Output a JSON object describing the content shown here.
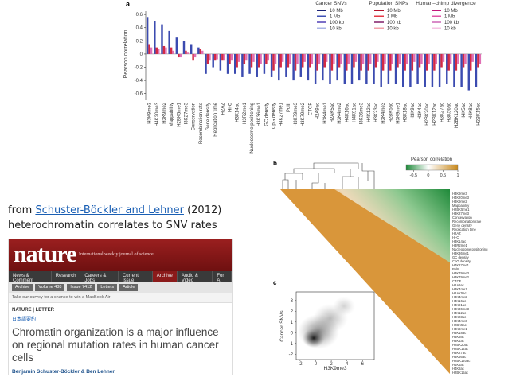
{
  "figure": {
    "panel_a": {
      "type": "bar",
      "letter": "a",
      "ylabel": "Pearson correlation",
      "categories": [
        "H3K9me3",
        "H4K20me3",
        "H3K9me2",
        "Mappability",
        "H2BK5me1",
        "H3K27me3",
        "Conservation",
        "Recombination rate",
        "Gene density",
        "Replication time",
        "H2AZ",
        "Hi-C",
        "H3K14ac",
        "H3R2me1",
        "Nucleosome positioning",
        "H3K36me1",
        "GC density",
        "CpG density",
        "H4K27me1",
        "PolII",
        "H3K79me3",
        "H3K79me2",
        "CTCF",
        "H2A9ac",
        "H3K4me1",
        "H2AK5ac",
        "H3K4me2",
        "H4K16ac",
        "H4K91ac",
        "H3K36me3",
        "H4K12ac",
        "H3K23ac",
        "H3K4me3",
        "H2BK5ac",
        "H3K9me1",
        "H3K18ac",
        "H3K9ac",
        "H3K4ac",
        "H2BK20ac",
        "H2BK12ac",
        "H3K27ac",
        "H3K56ac",
        "H2BK120ac",
        "H4K5ac",
        "H4K8ac",
        "H2BK15ac"
      ],
      "resolutions": [
        "10 Mb",
        "1 Mb",
        "100 kb",
        "10 kb"
      ],
      "series": [
        {
          "name": "Cancer SNVs",
          "color": "#3b4bb0",
          "legend_colors": [
            "#1c2478",
            "#3f51b5",
            "#7c6fc8",
            "#aab4e6"
          ],
          "values": [
            0.55,
            0.5,
            0.45,
            0.35,
            0.25,
            0.2,
            0.15,
            0.1,
            -0.3,
            -0.2,
            -0.25,
            -0.3,
            -0.3,
            -0.35,
            -0.3,
            -0.35,
            -0.3,
            -0.35,
            -0.4,
            -0.35,
            -0.4,
            -0.35,
            -0.4,
            -0.45,
            -0.4,
            -0.45,
            -0.4,
            -0.45,
            -0.45,
            -0.4,
            -0.45,
            -0.45,
            -0.5,
            -0.45,
            -0.45,
            -0.5,
            -0.5,
            -0.45,
            -0.5,
            -0.5,
            -0.5,
            -0.45,
            -0.5,
            -0.5,
            -0.55,
            -0.5
          ]
        },
        {
          "name": "Population SNPs",
          "color": "#d42a44",
          "legend_colors": [
            "#b3122b",
            "#e53945",
            "#a0568e",
            "#f2a0a8"
          ],
          "values": [
            0.15,
            0.1,
            0.12,
            0.1,
            -0.05,
            0.05,
            -0.1,
            0.08,
            -0.15,
            -0.1,
            -0.1,
            -0.15,
            -0.2,
            -0.15,
            -0.2,
            -0.2,
            -0.15,
            -0.25,
            -0.2,
            -0.2,
            -0.25,
            -0.2,
            -0.2,
            -0.25,
            -0.2,
            -0.25,
            -0.2,
            -0.25,
            -0.2,
            -0.25,
            -0.25,
            -0.2,
            -0.25,
            -0.25,
            -0.2,
            -0.25,
            -0.25,
            -0.2,
            -0.25,
            -0.25,
            -0.2,
            -0.25,
            -0.25,
            -0.2,
            -0.25,
            -0.2
          ]
        },
        {
          "name": "Human–chimp divergence",
          "color": "#e070b4",
          "legend_colors": [
            "#c2187a",
            "#e056a8",
            "#d98cc8",
            "#f4c2e2"
          ],
          "values": [
            0.1,
            0.08,
            0.1,
            0.05,
            -0.05,
            0.02,
            -0.05,
            0.05,
            -0.1,
            -0.08,
            -0.1,
            -0.1,
            -0.12,
            -0.1,
            -0.12,
            -0.15,
            -0.1,
            -0.15,
            -0.12,
            -0.15,
            -0.15,
            -0.12,
            -0.15,
            -0.15,
            -0.12,
            -0.15,
            -0.15,
            -0.15,
            -0.12,
            -0.15,
            -0.15,
            -0.12,
            -0.15,
            -0.15,
            -0.15,
            -0.15,
            -0.12,
            -0.15,
            -0.15,
            -0.15,
            -0.12,
            -0.15,
            -0.15,
            -0.15,
            -0.12,
            -0.15
          ]
        }
      ],
      "ylim": [
        -0.7,
        0.65
      ],
      "yticks": [
        0.6,
        0.4,
        0.2,
        0,
        -0.2,
        -0.4,
        -0.6
      ]
    },
    "panel_b": {
      "letter": "b",
      "colorbar": {
        "title": "Pearson correlation",
        "lim": [
          -0.75,
          1
        ],
        "ticks": [
          -0.5,
          0,
          0.5,
          1
        ]
      }
    },
    "panel_c": {
      "type": "scatter",
      "letter": "c",
      "xlabel": "H3K9me3",
      "ylabel": "Cancer SNVs",
      "xlim": [
        -2.5,
        7.5
      ],
      "xticks": [
        -2,
        0,
        2,
        4,
        6
      ],
      "ylim": [
        -2.5,
        3.8
      ],
      "yticks": [
        3,
        2,
        1,
        0,
        -1,
        -2
      ]
    }
  },
  "caption": {
    "prefix": "from",
    "link": "Schuster-Böckler and Lehner",
    "year": "(2012)",
    "line2": "heterochromatin correlates to SNV rates"
  },
  "screenshot": {
    "logo": "nature",
    "tagline": "International weekly journal of science",
    "nav": [
      "News & Comment",
      "Research",
      "Careers & Jobs",
      "Current Issue",
      "Archive",
      "Audio & Video",
      "For A"
    ],
    "crumbs": [
      "Archive",
      "Volume 488",
      "Issue 7412",
      "Letters",
      "Article"
    ],
    "survey": "Take our survey for a chance to win a MacBook Air",
    "kind": "NATURE | LETTER",
    "japanese": "日本語要約",
    "title": "Chromatin organization is a major influence on regional mutation rates in human cancer cells",
    "authors": "Benjamin Schuster-Böckler & Ben Lehner"
  }
}
